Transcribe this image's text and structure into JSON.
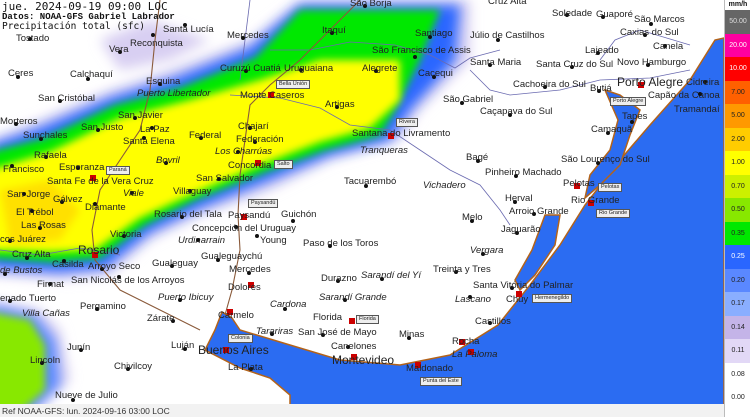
{
  "header": {
    "datetime": "jue. 2024-09-19 09:00 LOC",
    "source": "Datos: NOAA-GFS Gabriel Labrador",
    "variable": "Precipitación total (sfc)"
  },
  "footer": {
    "reference": "Ref NOAA-GFS: lun. 2024-09-16 03:00 LOC"
  },
  "legend": {
    "unit": "mm/h",
    "items": [
      {
        "value": "50.00",
        "color": "#666666",
        "text": "#dddddd"
      },
      {
        "value": "20.00",
        "color": "#ff00a0",
        "text": "#ffffff"
      },
      {
        "value": "10.00",
        "color": "#ff0000",
        "text": "#ffffff"
      },
      {
        "value": "7.00",
        "color": "#ff6000",
        "text": "#222222"
      },
      {
        "value": "5.00",
        "color": "#ff9900",
        "text": "#222222"
      },
      {
        "value": "2.00",
        "color": "#ffcc00",
        "text": "#222222"
      },
      {
        "value": "1.00",
        "color": "#ffff00",
        "text": "#222222"
      },
      {
        "value": "0.70",
        "color": "#ccf000",
        "text": "#222222"
      },
      {
        "value": "0.50",
        "color": "#88e800",
        "text": "#222222"
      },
      {
        "value": "0.35",
        "color": "#00e800",
        "text": "#222222"
      },
      {
        "value": "0.25",
        "color": "#2a66ff",
        "text": "#ffffff"
      },
      {
        "value": "0.20",
        "color": "#5a88ff",
        "text": "#222222"
      },
      {
        "value": "0.17",
        "color": "#8aaeff",
        "text": "#222222"
      },
      {
        "value": "0.14",
        "color": "#c4b4e8",
        "text": "#222222"
      },
      {
        "value": "0.11",
        "color": "#e2d8f6",
        "text": "#222222"
      },
      {
        "value": "0.08",
        "color": "#ffffff",
        "text": "#222222"
      },
      {
        "value": "0.00",
        "color": "#ffffff",
        "text": "#222222"
      }
    ]
  },
  "colors": {
    "ocean": "#2b6cf2",
    "coast": "#b3631a",
    "border": "#6a6ab0"
  },
  "places": [
    "Tostado",
    "Santa Lucía",
    "Reconquista",
    "Mercedes",
    "Itaquí",
    "São Borja",
    "Santiago",
    "Júlio de Castilhos",
    "Cruz Alta",
    "Soledade",
    "Guaporé",
    "São Marcos",
    "Caxias do Sul",
    "Canela",
    "Lajeado",
    "Novo Hamburgo",
    "Capão da Canoa",
    "Tramandaí",
    "Cidreira",
    "Porto Alegre",
    "Santa Cruz do Sul",
    "Santa Maria",
    "Cachoeira do Sul",
    "Butiá",
    "São Francisco de Assis",
    "Alegrete",
    "Cacequi",
    "Ceres",
    "Calchaquí",
    "Vera",
    "Curuzú Cuatiá",
    "Uruguaiana",
    "Esquina",
    "Puerto Libertador",
    "Monte Caseros",
    "São Gabriel",
    "Caçapava do Sul",
    "San Cristóbal",
    "San Javier",
    "San Justo",
    "La Paz",
    "Santa Elena",
    "Federal",
    "Chajarí",
    "Artigas",
    "Morteros",
    "Sunchales",
    "Federación",
    "Los Charrúas",
    "Santana do Livramento",
    "Camaquã",
    "Tapes",
    "Rafaela",
    "Bovril",
    "Concordia",
    "Tranqueras",
    "Bagé",
    "São Lourenço do Sul",
    "Francisco",
    "Esperanza",
    "Santa Fe de la Vera Cruz",
    "Pinheiro Machado",
    "San Salvador",
    "Tacuarembó",
    "Vichadero",
    "Viale",
    "Villaguay",
    "Pelotas",
    "San Jorge",
    "Gálvez",
    "Diamante",
    "Herval",
    "Rio Grande",
    "El Trébol",
    "Arroio Grande",
    "Rosario del Tala",
    "Paysandú",
    "Melo",
    "Concepción del Uruguay",
    "Guichón",
    "Las Rosas",
    "Urdinarrain",
    "Jaguarão",
    "Victoria",
    "Young",
    "cos Juárez",
    "Paso de los Toros",
    "Vergara",
    "Rosario",
    "Cruz Alta",
    "Casilda",
    "Arroyo Seco",
    "Gualeguay",
    "Gualeguaychú",
    "de Bustos",
    "San Nicolás de los Arroyos",
    "Treinta y Tres",
    "Sarandí del Yí",
    "Mercedes",
    "Durazno",
    "Firmat",
    "Santa Vitória do Palmar",
    "Dolores",
    "enado Tuerto",
    "Pergamino",
    "Puerto Ibicuy",
    "Sarandí Grande",
    "Lascano",
    "Chuy",
    "Cardona",
    "Villa Cañas",
    "Zárate",
    "Carmelo",
    "Florida",
    "Castillos",
    "Tarariras",
    "San José de Mayo",
    "Minas",
    "Canelones",
    "Rocha",
    "La Paloma",
    "Luján",
    "Buenos Aires",
    "Junín",
    "Montevideo",
    "Maldonado",
    "La Plata",
    "Lincoln",
    "Chivilcoy",
    "Nueve de Julio"
  ],
  "stations": [
    "Bella Unión",
    "Rivera",
    "Salto",
    "Paraná",
    "Paysandú",
    "Porto Alegre",
    "Pelotas",
    "Rio Grande",
    "Hermenegildo",
    "Colonia",
    "Florida",
    "Punta del Este"
  ]
}
